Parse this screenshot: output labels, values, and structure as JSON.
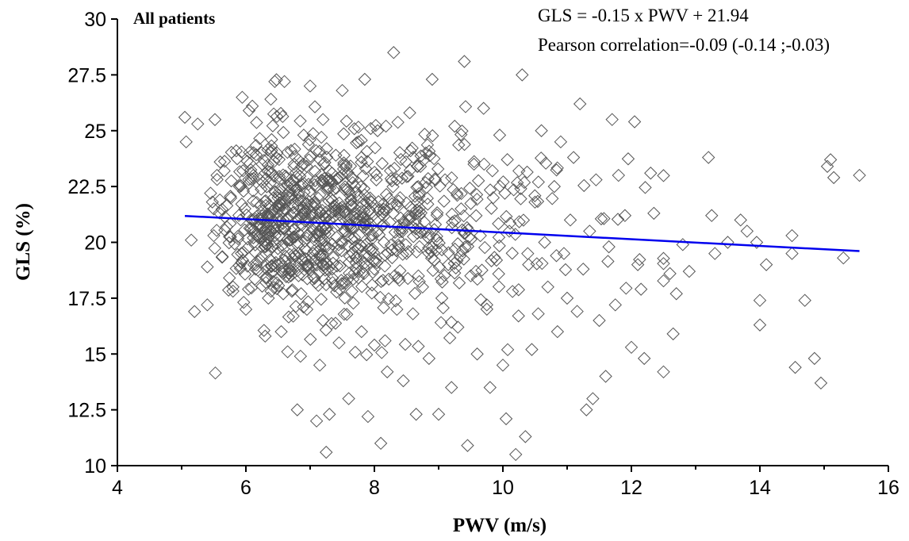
{
  "chart_data": {
    "type": "scatter",
    "title": "All patients",
    "xlabel": "PWV (m/s)",
    "ylabel": "GLS (%)",
    "xlim": [
      4,
      16
    ],
    "ylim": [
      10,
      30
    ],
    "x_ticks": [
      4,
      6,
      8,
      10,
      12,
      14,
      16
    ],
    "y_ticks": [
      10,
      12.5,
      15,
      17.5,
      20,
      22.5,
      25,
      27.5,
      30
    ],
    "x_tick_labels": [
      "4",
      "6",
      "8",
      "10",
      "12",
      "14",
      "16"
    ],
    "y_tick_labels": [
      "10",
      "12.5",
      "15",
      "17.5",
      "20",
      "22.5",
      "25",
      "27.5",
      "30"
    ],
    "grid": false,
    "legend": "none",
    "annotations": [
      "GLS =  -0.15  x PWV +  21.94",
      "Pearson correlation=-0.09 (-0.14 ;-0.03)"
    ],
    "regression": {
      "slope": -0.15,
      "intercept": 21.94,
      "x_range": [
        5.05,
        15.55
      ],
      "color": "#0000ee"
    },
    "marker": {
      "shape": "diamond",
      "fill": "none",
      "stroke": "#555555"
    },
    "series": [
      {
        "points": [
          [
            5.05,
            25.6
          ],
          [
            5.07,
            24.5
          ],
          [
            5.15,
            20.1
          ],
          [
            5.2,
            16.9
          ],
          [
            5.25,
            25.3
          ],
          [
            5.4,
            18.9
          ],
          [
            5.4,
            17.2
          ],
          [
            5.45,
            22.2
          ],
          [
            5.5,
            21.5
          ],
          [
            5.5,
            20.3
          ],
          [
            5.55,
            23.0
          ],
          [
            5.6,
            23.6
          ],
          [
            5.7,
            20.7
          ],
          [
            5.8,
            18.0
          ],
          [
            5.85,
            24.1
          ],
          [
            5.9,
            22.5
          ],
          [
            5.95,
            19.2
          ],
          [
            6.0,
            17.0
          ],
          [
            6.05,
            25.9
          ],
          [
            6.1,
            26.1
          ],
          [
            6.1,
            21.0
          ],
          [
            6.15,
            18.8
          ],
          [
            6.2,
            20.2
          ],
          [
            6.3,
            23.1
          ],
          [
            6.3,
            15.8
          ],
          [
            6.35,
            17.5
          ],
          [
            6.4,
            24.6
          ],
          [
            6.45,
            27.2
          ],
          [
            6.5,
            22.0
          ],
          [
            6.5,
            19.0
          ],
          [
            6.55,
            16.0
          ],
          [
            6.6,
            27.2
          ],
          [
            6.6,
            21.5
          ],
          [
            6.65,
            15.1
          ],
          [
            6.7,
            18.5
          ],
          [
            6.75,
            23.5
          ],
          [
            6.8,
            20.0
          ],
          [
            6.8,
            12.5
          ],
          [
            6.85,
            14.9
          ],
          [
            6.9,
            24.8
          ],
          [
            6.95,
            17.0
          ],
          [
            7.0,
            27.0
          ],
          [
            7.0,
            22.3
          ],
          [
            7.05,
            19.5
          ],
          [
            7.1,
            12.0
          ],
          [
            7.15,
            14.5
          ],
          [
            7.2,
            16.5
          ],
          [
            7.2,
            25.5
          ],
          [
            7.25,
            10.6
          ],
          [
            7.3,
            12.3
          ],
          [
            7.3,
            21.0
          ],
          [
            7.35,
            18.2
          ],
          [
            7.4,
            23.9
          ],
          [
            7.45,
            15.5
          ],
          [
            7.5,
            26.8
          ],
          [
            7.55,
            20.5
          ],
          [
            7.6,
            13.0
          ],
          [
            7.65,
            17.8
          ],
          [
            7.7,
            22.5
          ],
          [
            7.7,
            19.8
          ],
          [
            7.75,
            24.5
          ],
          [
            7.8,
            16.0
          ],
          [
            7.85,
            27.3
          ],
          [
            7.9,
            12.2
          ],
          [
            7.95,
            21.8
          ],
          [
            8.0,
            18.8
          ],
          [
            8.0,
            15.4
          ],
          [
            8.05,
            25.0
          ],
          [
            8.1,
            11.0
          ],
          [
            8.15,
            20.0
          ],
          [
            8.2,
            14.2
          ],
          [
            8.25,
            23.2
          ],
          [
            8.3,
            28.5
          ],
          [
            8.35,
            17.0
          ],
          [
            8.4,
            22.0
          ],
          [
            8.45,
            13.8
          ],
          [
            8.5,
            19.5
          ],
          [
            8.55,
            25.8
          ],
          [
            8.6,
            16.8
          ],
          [
            8.65,
            12.3
          ],
          [
            8.7,
            21.2
          ],
          [
            8.75,
            18.0
          ],
          [
            8.8,
            24.0
          ],
          [
            8.85,
            14.8
          ],
          [
            8.9,
            27.3
          ],
          [
            8.95,
            20.8
          ],
          [
            9.0,
            12.3
          ],
          [
            9.05,
            17.5
          ],
          [
            9.1,
            22.8
          ],
          [
            9.15,
            19.0
          ],
          [
            9.2,
            13.5
          ],
          [
            9.25,
            25.2
          ],
          [
            9.3,
            16.2
          ],
          [
            9.35,
            21.5
          ],
          [
            9.4,
            28.1
          ],
          [
            9.45,
            10.9
          ],
          [
            9.5,
            18.5
          ],
          [
            9.55,
            23.5
          ],
          [
            9.6,
            15.0
          ],
          [
            9.65,
            20.3
          ],
          [
            9.7,
            26.0
          ],
          [
            9.75,
            17.2
          ],
          [
            9.8,
            13.5
          ],
          [
            9.85,
            22.0
          ],
          [
            9.9,
            19.2
          ],
          [
            9.95,
            24.8
          ],
          [
            10.0,
            14.5
          ],
          [
            10.05,
            12.1
          ],
          [
            10.1,
            20.5
          ],
          [
            10.15,
            17.8
          ],
          [
            10.2,
            10.5
          ],
          [
            10.25,
            23.2
          ],
          [
            10.3,
            27.5
          ],
          [
            10.35,
            11.3
          ],
          [
            10.4,
            19.0
          ],
          [
            10.45,
            15.2
          ],
          [
            10.5,
            21.8
          ],
          [
            10.55,
            16.8
          ],
          [
            10.6,
            25.0
          ],
          [
            10.65,
            20.0
          ],
          [
            10.7,
            18.0
          ],
          [
            10.8,
            22.5
          ],
          [
            10.85,
            16.0
          ],
          [
            10.9,
            24.5
          ],
          [
            10.95,
            19.5
          ],
          [
            11.0,
            17.5
          ],
          [
            11.05,
            21.0
          ],
          [
            11.1,
            23.8
          ],
          [
            11.2,
            26.2
          ],
          [
            11.25,
            18.8
          ],
          [
            11.3,
            12.5
          ],
          [
            11.35,
            20.5
          ],
          [
            11.4,
            13.0
          ],
          [
            11.45,
            22.8
          ],
          [
            11.5,
            16.5
          ],
          [
            11.6,
            14.0
          ],
          [
            11.65,
            19.8
          ],
          [
            11.7,
            25.5
          ],
          [
            11.75,
            17.2
          ],
          [
            11.8,
            23.0
          ],
          [
            11.9,
            21.2
          ],
          [
            12.0,
            15.3
          ],
          [
            12.05,
            25.4
          ],
          [
            12.1,
            19.0
          ],
          [
            12.15,
            17.9
          ],
          [
            12.2,
            14.8
          ],
          [
            12.3,
            23.1
          ],
          [
            12.35,
            21.3
          ],
          [
            12.6,
            18.6
          ],
          [
            12.65,
            15.9
          ],
          [
            12.7,
            17.7
          ],
          [
            12.8,
            19.9
          ],
          [
            12.9,
            18.7
          ],
          [
            13.2,
            23.8
          ],
          [
            13.25,
            21.2
          ],
          [
            13.3,
            19.5
          ],
          [
            13.5,
            20.0
          ],
          [
            13.7,
            21.0
          ],
          [
            13.8,
            20.5
          ],
          [
            13.95,
            20.0
          ],
          [
            14.0,
            16.3
          ],
          [
            14.0,
            17.4
          ],
          [
            14.1,
            19.0
          ],
          [
            14.5,
            20.3
          ],
          [
            14.5,
            19.5
          ],
          [
            14.55,
            14.4
          ],
          [
            14.7,
            17.4
          ],
          [
            14.85,
            14.8
          ],
          [
            14.95,
            13.7
          ],
          [
            15.05,
            23.4
          ],
          [
            15.1,
            23.7
          ],
          [
            15.15,
            22.9
          ],
          [
            15.3,
            19.3
          ],
          [
            15.55,
            23.0
          ]
        ]
      }
    ]
  }
}
